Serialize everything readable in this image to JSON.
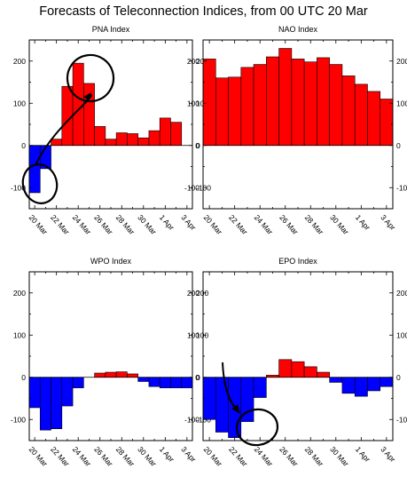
{
  "figure": {
    "title": "Forecasts of Teleconnection Indices, from 00 UTC 20 Mar"
  },
  "colors": {
    "positive": "#ff0000",
    "negative": "#0000ff",
    "outline": "#000000",
    "annotation": "#000000"
  },
  "chart_data": [
    {
      "type": "bar",
      "title": "PNA Index",
      "categories": [
        "20 Mar",
        "21 Mar",
        "22 Mar",
        "23 Mar",
        "24 Mar",
        "25 Mar",
        "26 Mar",
        "27 Mar",
        "28 Mar",
        "29 Mar",
        "30 Mar",
        "31 Mar",
        "1 Apr",
        "2 Apr",
        "3 Apr"
      ],
      "values": [
        -112,
        -55,
        15,
        140,
        195,
        147,
        45,
        15,
        30,
        28,
        18,
        35,
        65,
        55,
        0
      ],
      "ylim": [
        -150,
        250
      ],
      "yticks": [
        -100,
        0,
        100,
        200
      ],
      "xtick_labels": [
        "20 Mar",
        "22 Mar",
        "24 Mar",
        "26 Mar",
        "28 Mar",
        "30 Mar",
        "1 Apr",
        "3 Apr"
      ],
      "grid": false,
      "annotations": [
        "circle around 20 Mar bar",
        "circle around 25-26 Mar bars",
        "curved arrow from 20 Mar circle to 25 Mar circle"
      ]
    },
    {
      "type": "bar",
      "title": "NAO Index",
      "categories": [
        "20 Mar",
        "21 Mar",
        "22 Mar",
        "23 Mar",
        "24 Mar",
        "25 Mar",
        "26 Mar",
        "27 Mar",
        "28 Mar",
        "29 Mar",
        "30 Mar",
        "31 Mar",
        "1 Apr",
        "2 Apr",
        "3 Apr"
      ],
      "values": [
        205,
        160,
        162,
        185,
        192,
        210,
        230,
        205,
        198,
        208,
        192,
        165,
        145,
        128,
        110
      ],
      "ylim": [
        -150,
        250
      ],
      "yticks": [
        -100,
        0,
        100,
        200
      ],
      "xtick_labels": [
        "20 Mar",
        "22 Mar",
        "24 Mar",
        "26 Mar",
        "28 Mar",
        "30 Mar",
        "1 Apr",
        "3 Apr"
      ],
      "grid": false
    },
    {
      "type": "bar",
      "title": "WPO Index",
      "categories": [
        "20 Mar",
        "21 Mar",
        "22 Mar",
        "23 Mar",
        "24 Mar",
        "25 Mar",
        "26 Mar",
        "27 Mar",
        "28 Mar",
        "29 Mar",
        "30 Mar",
        "31 Mar",
        "1 Apr",
        "2 Apr",
        "3 Apr"
      ],
      "values": [
        -72,
        -125,
        -122,
        -68,
        -25,
        0,
        10,
        12,
        13,
        8,
        -10,
        -22,
        -25,
        -25,
        -25
      ],
      "ylim": [
        -150,
        250
      ],
      "yticks": [
        -100,
        0,
        100,
        200
      ],
      "xtick_labels": [
        "20 Mar",
        "22 Mar",
        "24 Mar",
        "26 Mar",
        "28 Mar",
        "30 Mar",
        "1 Apr",
        "3 Apr"
      ],
      "grid": false
    },
    {
      "type": "bar",
      "title": "EPO Index",
      "categories": [
        "20 Mar",
        "21 Mar",
        "22 Mar",
        "23 Mar",
        "24 Mar",
        "25 Mar",
        "26 Mar",
        "27 Mar",
        "28 Mar",
        "29 Mar",
        "30 Mar",
        "31 Mar",
        "1 Apr",
        "2 Apr",
        "3 Apr"
      ],
      "values": [
        -100,
        -130,
        -143,
        -105,
        -48,
        5,
        42,
        37,
        25,
        12,
        -12,
        -38,
        -45,
        -32,
        -22
      ],
      "ylim": [
        -150,
        250
      ],
      "yticks": [
        -100,
        0,
        100,
        200
      ],
      "xtick_labels": [
        "20 Mar",
        "22 Mar",
        "24 Mar",
        "26 Mar",
        "28 Mar",
        "30 Mar",
        "1 Apr",
        "3 Apr"
      ],
      "grid": false,
      "annotations": [
        "circle around 21-22 Mar bars",
        "curved arrow pointing to the circle"
      ]
    }
  ]
}
